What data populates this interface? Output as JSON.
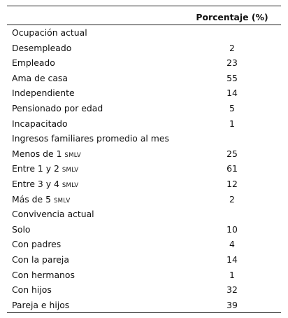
{
  "table": {
    "header": "Porcentaje (%)",
    "rows": [
      {
        "label": "Ocupación actual",
        "value": ""
      },
      {
        "label": "Desempleado",
        "value": "2"
      },
      {
        "label": "Empleado",
        "value": "23"
      },
      {
        "label": "Ama de casa",
        "value": "55"
      },
      {
        "label": "Independiente",
        "value": "14"
      },
      {
        "label": "Pensionado por edad",
        "value": "5"
      },
      {
        "label": "Incapacitado",
        "value": "1"
      },
      {
        "label": "Ingresos familiares promedio al mes",
        "value": ""
      },
      {
        "label": "Menos de 1",
        "unit": "SMLV",
        "value": "25"
      },
      {
        "label": "Entre 1 y 2",
        "unit": "SMLV",
        "value": "61"
      },
      {
        "label": "Entre 3 y 4",
        "unit": "SMLV",
        "value": "12"
      },
      {
        "label": "Más de 5",
        "unit": "SMLV",
        "value": "2"
      },
      {
        "label": "Convivencia actual",
        "value": ""
      },
      {
        "label": "Solo",
        "value": "10"
      },
      {
        "label": "Con padres",
        "value": "4"
      },
      {
        "label": "Con la pareja",
        "value": "14"
      },
      {
        "label": "Con hermanos",
        "value": "1"
      },
      {
        "label": "Con hijos",
        "value": "32"
      },
      {
        "label": "Pareja e hijos",
        "value": "39"
      }
    ]
  }
}
